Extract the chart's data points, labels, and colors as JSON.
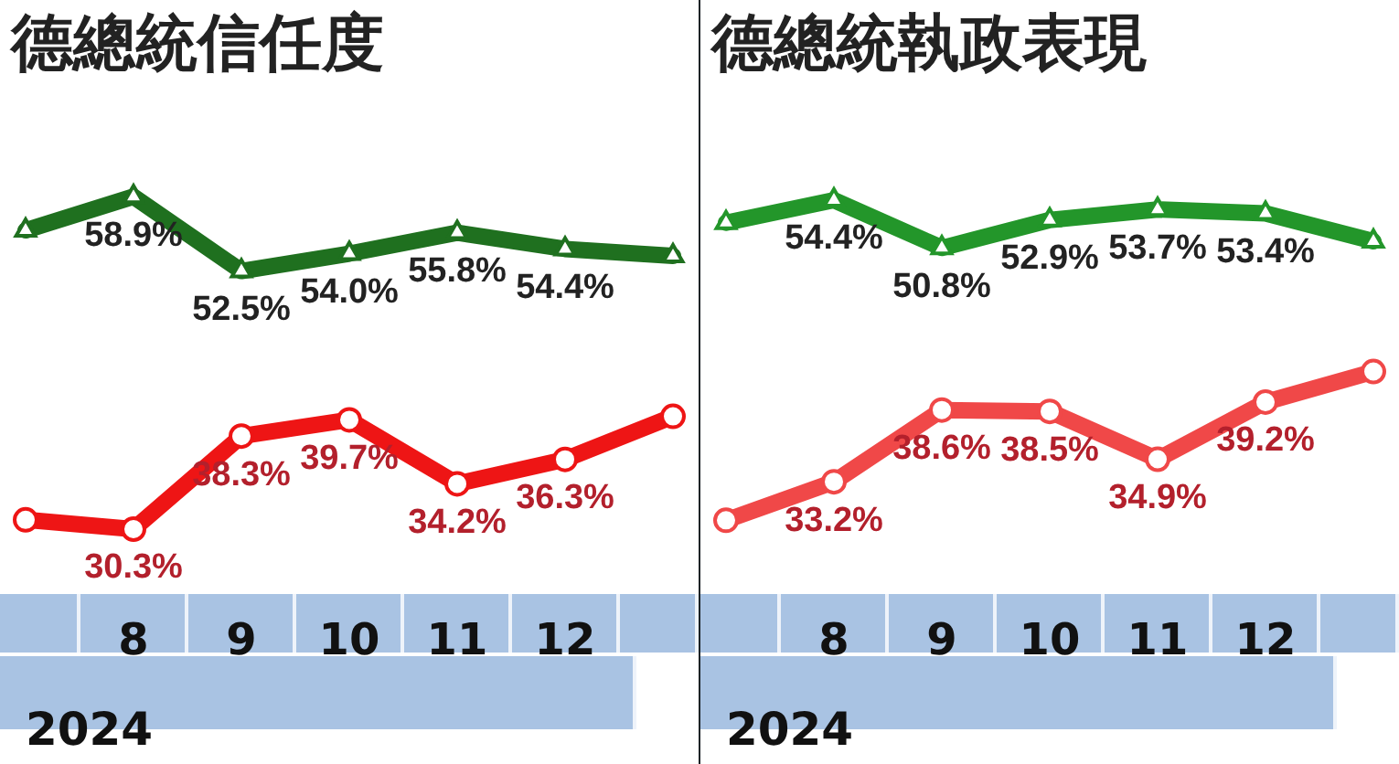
{
  "chart_data": [
    {
      "type": "line",
      "title": "德總統信任度",
      "xlabel": "2024",
      "categories": [
        null,
        "8",
        "9",
        "10",
        "11",
        "12",
        null
      ],
      "tick_labels": "x",
      "legend": false,
      "line_style": "solid",
      "series": [
        {
          "color": "#1f701f",
          "marker": "triangle",
          "values": [
            56,
            58.9,
            52.5,
            54.0,
            55.8,
            54.4,
            53.8
          ],
          "value_labels": [
            null,
            "58.9%",
            "52.5%",
            "54.0%",
            "55.8%",
            "54.4%",
            null
          ]
        },
        {
          "color": "#ee1515",
          "marker": "circle",
          "values": [
            31.1,
            30.3,
            38.3,
            39.7,
            34.2,
            36.3,
            40
          ],
          "value_labels": [
            null,
            "30.3%",
            "38.3%",
            "39.7%",
            "34.2%",
            "36.3%",
            null
          ]
        }
      ]
    },
    {
      "type": "line",
      "title": "德總統執政表現",
      "xlabel": "2024",
      "categories": [
        null,
        "8",
        "9",
        "10",
        "11",
        "12",
        null
      ],
      "tick_labels": "x",
      "legend": false,
      "line_style": "solid",
      "series": [
        {
          "color": "#23962a",
          "marker": "triangle",
          "values": [
            52.7,
            54.4,
            50.8,
            52.9,
            53.7,
            53.4,
            51.3
          ],
          "value_labels": [
            null,
            "54.4%",
            "50.8%",
            "52.9%",
            "53.7%",
            "53.4%",
            null
          ]
        },
        {
          "color": "#f04848",
          "marker": "circle",
          "values": [
            30.3,
            33.2,
            38.6,
            38.5,
            34.9,
            39.2,
            41.5
          ],
          "value_labels": [
            null,
            "33.2%",
            "38.6%",
            "38.5%",
            "34.9%",
            "39.2%",
            null
          ]
        }
      ]
    }
  ]
}
